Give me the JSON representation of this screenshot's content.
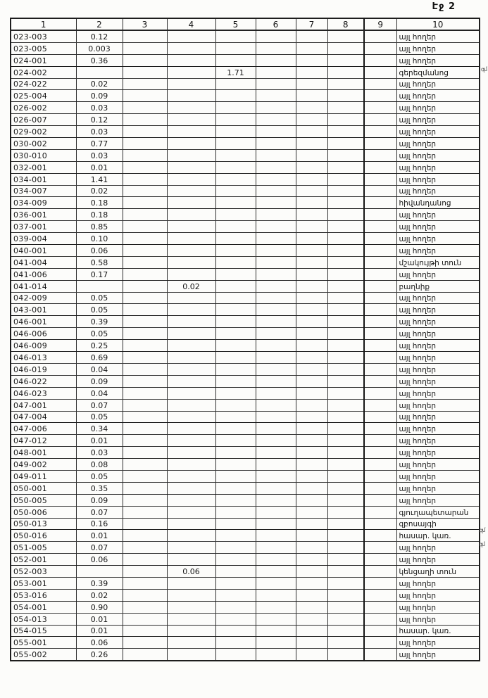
{
  "page_label": "Էջ 2",
  "margin_notes": {
    "n1": "զմ",
    "n2": ".զմ",
    "n3": "զմ"
  },
  "table": {
    "column_headers": [
      "1",
      "2",
      "3",
      "4",
      "5",
      "6",
      "7",
      "8",
      "9",
      "10"
    ],
    "rows": [
      [
        "023-003",
        "0.12",
        "",
        "",
        "",
        "",
        "",
        "",
        "",
        "այլ հողեր"
      ],
      [
        "023-005",
        "0.003",
        "",
        "",
        "",
        "",
        "",
        "",
        "",
        "այլ հողեր"
      ],
      [
        "024-001",
        "0.36",
        "",
        "",
        "",
        "",
        "",
        "",
        "",
        "այլ հողեր"
      ],
      [
        "024-002",
        "",
        "",
        "",
        "1.71",
        "",
        "",
        "",
        "",
        "գերեզմանոց"
      ],
      [
        "024-022",
        "0.02",
        "",
        "",
        "",
        "",
        "",
        "",
        "",
        "այլ հողեր"
      ],
      [
        "025-004",
        "0.09",
        "",
        "",
        "",
        "",
        "",
        "",
        "",
        "այլ հողեր"
      ],
      [
        "026-002",
        "0.03",
        "",
        "",
        "",
        "",
        "",
        "",
        "",
        "այլ հողեր"
      ],
      [
        "026-007",
        "0.12",
        "",
        "",
        "",
        "",
        "",
        "",
        "",
        "այլ հողեր"
      ],
      [
        "029-002",
        "0.03",
        "",
        "",
        "",
        "",
        "",
        "",
        "",
        "այլ հողեր"
      ],
      [
        "030-002",
        "0.77",
        "",
        "",
        "",
        "",
        "",
        "",
        "",
        "այլ հողեր"
      ],
      [
        "030-010",
        "0.03",
        "",
        "",
        "",
        "",
        "",
        "",
        "",
        "այլ հողեր"
      ],
      [
        "032-001",
        "0.01",
        "",
        "",
        "",
        "",
        "",
        "",
        "",
        "այլ հողեր"
      ],
      [
        "034-001",
        "1.41",
        "",
        "",
        "",
        "",
        "",
        "",
        "",
        "այլ հողեր"
      ],
      [
        "034-007",
        "0.02",
        "",
        "",
        "",
        "",
        "",
        "",
        "",
        "այլ հողեր"
      ],
      [
        "034-009",
        "0.18",
        "",
        "",
        "",
        "",
        "",
        "",
        "",
        "հիվանդանոց"
      ],
      [
        "036-001",
        "0.18",
        "",
        "",
        "",
        "",
        "",
        "",
        "",
        "այլ հողեր"
      ],
      [
        "037-001",
        "0.85",
        "",
        "",
        "",
        "",
        "",
        "",
        "",
        "այլ հողեր"
      ],
      [
        "039-004",
        "0.10",
        "",
        "",
        "",
        "",
        "",
        "",
        "",
        "այլ հողեր"
      ],
      [
        "040-001",
        "0.06",
        "",
        "",
        "",
        "",
        "",
        "",
        "",
        "այլ հողեր"
      ],
      [
        "041-004",
        "0.58",
        "",
        "",
        "",
        "",
        "",
        "",
        "",
        "մշակույթի տուն"
      ],
      [
        "041-006",
        "0.17",
        "",
        "",
        "",
        "",
        "",
        "",
        "",
        "այլ հողեր"
      ],
      [
        "041-014",
        "",
        "",
        "0.02",
        "",
        "",
        "",
        "",
        "",
        "բաղնիք"
      ],
      [
        "042-009",
        "0.05",
        "",
        "",
        "",
        "",
        "",
        "",
        "",
        "այլ հողեր"
      ],
      [
        "043-001",
        "0.05",
        "",
        "",
        "",
        "",
        "",
        "",
        "",
        "այլ հողեր"
      ],
      [
        "046-001",
        "0.39",
        "",
        "",
        "",
        "",
        "",
        "",
        "",
        "այլ հողեր"
      ],
      [
        "046-006",
        "0.05",
        "",
        "",
        "",
        "",
        "",
        "",
        "",
        "այլ հողեր"
      ],
      [
        "046-009",
        "0.25",
        "",
        "",
        "",
        "",
        "",
        "",
        "",
        "այլ հողեր"
      ],
      [
        "046-013",
        "0.69",
        "",
        "",
        "",
        "",
        "",
        "",
        "",
        "այլ հողեր"
      ],
      [
        "046-019",
        "0.04",
        "",
        "",
        "",
        "",
        "",
        "",
        "",
        "այլ հողեր"
      ],
      [
        "046-022",
        "0.09",
        "",
        "",
        "",
        "",
        "",
        "",
        "",
        "այլ հողեր"
      ],
      [
        "046-023",
        "0.04",
        "",
        "",
        "",
        "",
        "",
        "",
        "",
        "այլ հողեր"
      ],
      [
        "047-001",
        "0.07",
        "",
        "",
        "",
        "",
        "",
        "",
        "",
        "այլ հողեր"
      ],
      [
        "047-004",
        "0.05",
        "",
        "",
        "",
        "",
        "",
        "",
        "",
        "այլ հողեր"
      ],
      [
        "047-006",
        "0.34",
        "",
        "",
        "",
        "",
        "",
        "",
        "",
        "այլ հողեր"
      ],
      [
        "047-012",
        "0.01",
        "",
        "",
        "",
        "",
        "",
        "",
        "",
        "այլ հողեր"
      ],
      [
        "048-001",
        "0.03",
        "",
        "",
        "",
        "",
        "",
        "",
        "",
        "այլ հողեր"
      ],
      [
        "049-002",
        "0.08",
        "",
        "",
        "",
        "",
        "",
        "",
        "",
        "այլ հողեր"
      ],
      [
        "049-011",
        "0.05",
        "",
        "",
        "",
        "",
        "",
        "",
        "",
        "այլ հողեր"
      ],
      [
        "050-001",
        "0.35",
        "",
        "",
        "",
        "",
        "",
        "",
        "",
        "այլ հողեր"
      ],
      [
        "050-005",
        "0.09",
        "",
        "",
        "",
        "",
        "",
        "",
        "",
        "այլ հողեր"
      ],
      [
        "050-006",
        "0.07",
        "",
        "",
        "",
        "",
        "",
        "",
        "",
        "գյուղապետարան"
      ],
      [
        "050-013",
        "0.16",
        "",
        "",
        "",
        "",
        "",
        "",
        "",
        "զբոսայգի"
      ],
      [
        "050-016",
        "0.01",
        "",
        "",
        "",
        "",
        "",
        "",
        "",
        "հասար. կառ."
      ],
      [
        "051-005",
        "0.07",
        "",
        "",
        "",
        "",
        "",
        "",
        "",
        "այլ հողեր"
      ],
      [
        "052-001",
        "0.06",
        "",
        "",
        "",
        "",
        "",
        "",
        "",
        "այլ հողեր"
      ],
      [
        "052-003",
        "",
        "",
        "0.06",
        "",
        "",
        "",
        "",
        "",
        "կենցաղի տուն"
      ],
      [
        "053-001",
        "0.39",
        "",
        "",
        "",
        "",
        "",
        "",
        "",
        "այլ հողեր"
      ],
      [
        "053-016",
        "0.02",
        "",
        "",
        "",
        "",
        "",
        "",
        "",
        "այլ հողեր"
      ],
      [
        "054-001",
        "0.90",
        "",
        "",
        "",
        "",
        "",
        "",
        "",
        "այլ հողեր"
      ],
      [
        "054-013",
        "0.01",
        "",
        "",
        "",
        "",
        "",
        "",
        "",
        "այլ հողեր"
      ],
      [
        "054-015",
        "0.01",
        "",
        "",
        "",
        "",
        "",
        "",
        "",
        "հասար. կառ."
      ],
      [
        "055-001",
        "0.06",
        "",
        "",
        "",
        "",
        "",
        "",
        "",
        "այլ հողեր"
      ],
      [
        "055-002",
        "0.26",
        "",
        "",
        "",
        "",
        "",
        "",
        "",
        "այլ հողեր"
      ]
    ]
  }
}
